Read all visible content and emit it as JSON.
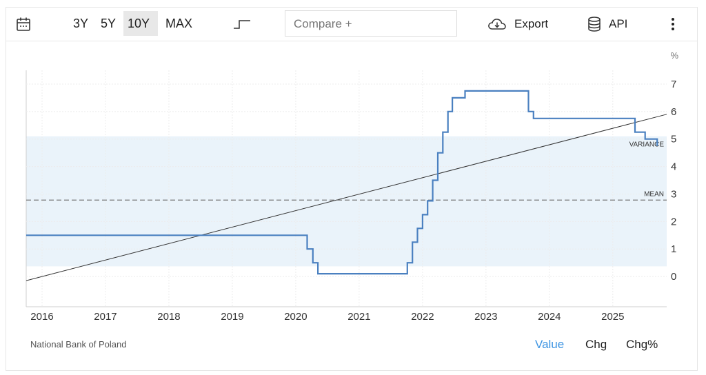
{
  "toolbar": {
    "ranges": [
      "3Y",
      "5Y",
      "10Y",
      "MAX"
    ],
    "active_range": "10Y",
    "compare_placeholder": "Compare +",
    "export_label": "Export",
    "api_label": "API"
  },
  "chart_data": {
    "type": "line",
    "unit": "%",
    "x_ticks": [
      "2016",
      "2017",
      "2018",
      "2019",
      "2020",
      "2021",
      "2022",
      "2023",
      "2024",
      "2025"
    ],
    "y_ticks": [
      "0",
      "1",
      "2",
      "3",
      "4",
      "5",
      "6",
      "7"
    ],
    "ylim": [
      -1.1,
      7.5
    ],
    "xlim": [
      2015.75,
      2025.85
    ],
    "grid": true,
    "series": [
      {
        "type": "step",
        "color": "#4a80c0",
        "points": [
          [
            2015.75,
            1.5
          ],
          [
            2020.18,
            1.5
          ],
          [
            2020.18,
            1.0
          ],
          [
            2020.27,
            1.0
          ],
          [
            2020.27,
            0.5
          ],
          [
            2020.35,
            0.5
          ],
          [
            2020.35,
            0.1
          ],
          [
            2021.76,
            0.1
          ],
          [
            2021.76,
            0.5
          ],
          [
            2021.84,
            0.5
          ],
          [
            2021.84,
            1.25
          ],
          [
            2021.92,
            1.25
          ],
          [
            2021.92,
            1.75
          ],
          [
            2022.0,
            1.75
          ],
          [
            2022.0,
            2.25
          ],
          [
            2022.08,
            2.25
          ],
          [
            2022.08,
            2.75
          ],
          [
            2022.16,
            2.75
          ],
          [
            2022.16,
            3.5
          ],
          [
            2022.24,
            3.5
          ],
          [
            2022.24,
            4.5
          ],
          [
            2022.32,
            4.5
          ],
          [
            2022.32,
            5.25
          ],
          [
            2022.4,
            5.25
          ],
          [
            2022.4,
            6.0
          ],
          [
            2022.47,
            6.0
          ],
          [
            2022.47,
            6.5
          ],
          [
            2022.67,
            6.5
          ],
          [
            2022.67,
            6.75
          ],
          [
            2023.67,
            6.75
          ],
          [
            2023.67,
            6.0
          ],
          [
            2023.75,
            6.0
          ],
          [
            2023.75,
            5.75
          ],
          [
            2025.35,
            5.75
          ],
          [
            2025.35,
            5.25
          ],
          [
            2025.51,
            5.25
          ],
          [
            2025.51,
            5.0
          ],
          [
            2025.7,
            5.0
          ],
          [
            2025.7,
            4.75
          ]
        ]
      }
    ],
    "trend_line": {
      "from": [
        2015.75,
        -0.15
      ],
      "to": [
        2025.85,
        5.9
      ],
      "color": "#333333"
    },
    "mean": {
      "value": 2.78,
      "label": "MEAN"
    },
    "variance_band": {
      "from": 0.37,
      "to": 5.1,
      "label": "VARIANCE",
      "color": "#eaf3fa"
    }
  },
  "footer": {
    "source": "National Bank of Poland",
    "tabs": [
      "Value",
      "Chg",
      "Chg%"
    ],
    "active_tab": "Value"
  }
}
